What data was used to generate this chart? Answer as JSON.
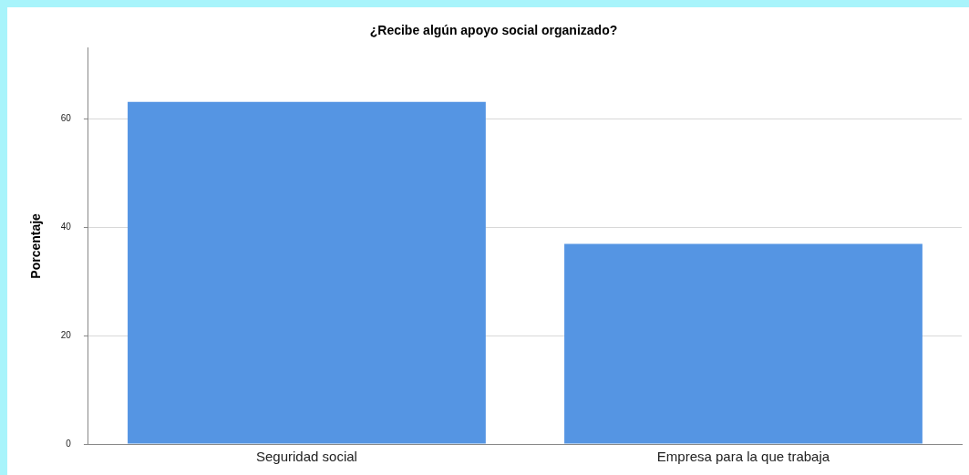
{
  "chart_data": {
    "type": "bar",
    "title": "¿Recibe algún apoyo social organizado?",
    "ylabel": "Porcentaje",
    "categories": [
      "Seguridad social",
      "Empresa para la que trabaja"
    ],
    "values": [
      63.1,
      36.9
    ],
    "color": "#5595e3",
    "ylim": [
      0,
      73
    ],
    "yticks": [
      0,
      20,
      40,
      60
    ],
    "grid": "y",
    "legend": false
  }
}
